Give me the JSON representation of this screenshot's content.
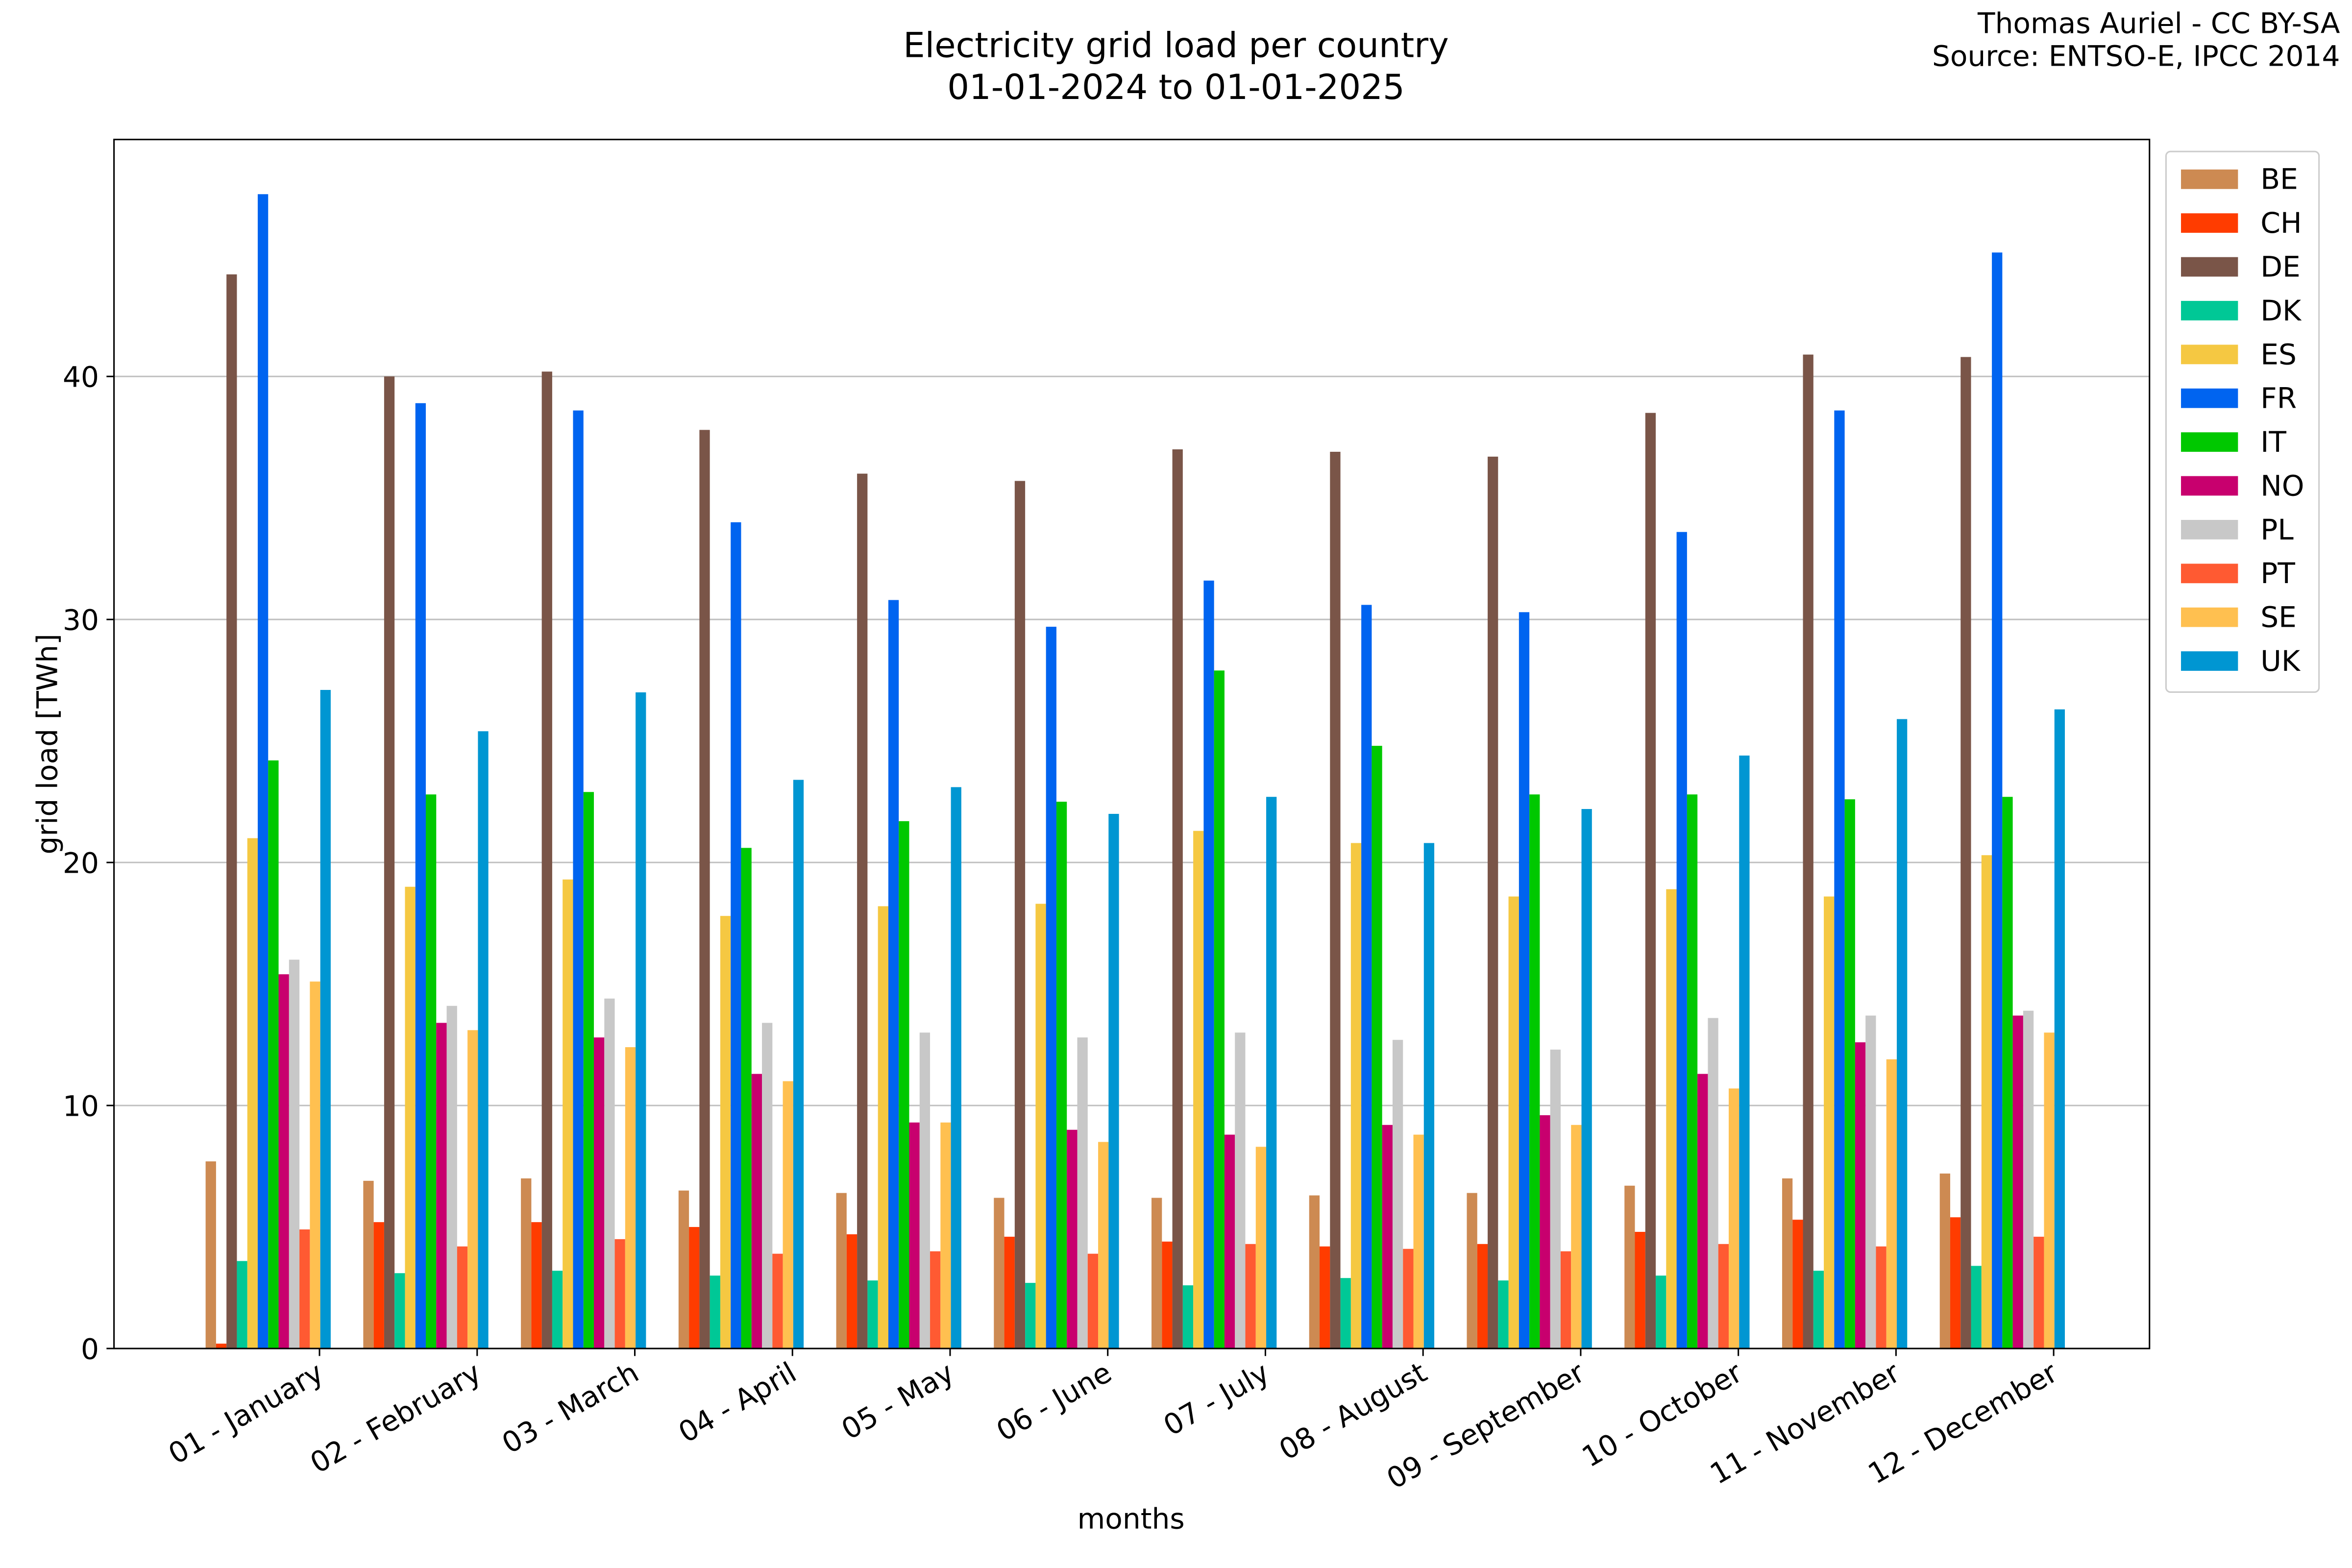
{
  "chart_data": {
    "type": "bar",
    "title": "Electricity grid load per country",
    "subtitle": "01-01-2024 to 01-01-2025",
    "annotations": [
      "Thomas Auriel - CC BY-SA",
      "Source: ENTSO-E, IPCC 2014"
    ],
    "x_label": "months",
    "y_label": "grid load [TWh]",
    "categories": [
      "01 - January",
      "02 - February",
      "03 - March",
      "04 - April",
      "05 - May",
      "06 - June",
      "07 - July",
      "08 - August",
      "09 - September",
      "10 - October",
      "11 - November",
      "12 - December"
    ],
    "series": [
      {
        "name": "BE",
        "color": "#cd8a52",
        "values": [
          7.7,
          6.9,
          7.0,
          6.5,
          6.4,
          6.2,
          6.2,
          6.3,
          6.4,
          6.7,
          7.0,
          7.2
        ]
      },
      {
        "name": "CH",
        "color": "#ff3c00",
        "values": [
          0.2,
          5.2,
          5.2,
          5.0,
          4.7,
          4.6,
          4.4,
          4.2,
          4.3,
          4.8,
          5.3,
          5.4
        ]
      },
      {
        "name": "DE",
        "color": "#7a5548",
        "values": [
          44.2,
          40.0,
          40.2,
          37.8,
          36.0,
          35.7,
          37.0,
          36.9,
          36.7,
          38.5,
          40.9,
          40.8
        ]
      },
      {
        "name": "DK",
        "color": "#00c896",
        "values": [
          3.6,
          3.1,
          3.2,
          3.0,
          2.8,
          2.7,
          2.6,
          2.9,
          2.8,
          3.0,
          3.2,
          3.4
        ]
      },
      {
        "name": "ES",
        "color": "#f5c842",
        "values": [
          21.0,
          19.0,
          19.3,
          17.8,
          18.2,
          18.3,
          21.3,
          20.8,
          18.6,
          18.9,
          18.6,
          20.3
        ]
      },
      {
        "name": "FR",
        "color": "#0064f0",
        "values": [
          47.5,
          38.9,
          38.6,
          34.0,
          30.8,
          29.7,
          31.6,
          30.6,
          30.3,
          33.6,
          38.6,
          45.1
        ]
      },
      {
        "name": "IT",
        "color": "#00c800",
        "values": [
          24.2,
          22.8,
          22.9,
          20.6,
          21.7,
          22.5,
          27.9,
          24.8,
          22.8,
          22.8,
          22.6,
          22.7
        ]
      },
      {
        "name": "NO",
        "color": "#c8006e",
        "values": [
          15.4,
          13.4,
          12.8,
          11.3,
          9.3,
          9.0,
          8.8,
          9.2,
          9.6,
          11.3,
          12.6,
          13.7
        ]
      },
      {
        "name": "PL",
        "color": "#c8c8c8",
        "values": [
          16.0,
          14.1,
          14.4,
          13.4,
          13.0,
          12.8,
          13.0,
          12.7,
          12.3,
          13.6,
          13.7,
          13.9
        ]
      },
      {
        "name": "PT",
        "color": "#ff5a32",
        "values": [
          4.9,
          4.2,
          4.5,
          3.9,
          4.0,
          3.9,
          4.3,
          4.1,
          4.0,
          4.3,
          4.2,
          4.6
        ]
      },
      {
        "name": "SE",
        "color": "#ffc050",
        "values": [
          15.1,
          13.1,
          12.4,
          11.0,
          9.3,
          8.5,
          8.3,
          8.8,
          9.2,
          10.7,
          11.9,
          13.0
        ]
      },
      {
        "name": "UK",
        "color": "#0096d2",
        "values": [
          27.1,
          25.4,
          27.0,
          23.4,
          23.1,
          22.0,
          22.7,
          20.8,
          22.2,
          24.4,
          25.9,
          26.3
        ]
      }
    ],
    "ylim": [
      0,
      49.75
    ],
    "yticks": [
      0,
      10,
      20,
      30,
      40
    ],
    "grid": true,
    "legend": "outside-upper-right"
  }
}
